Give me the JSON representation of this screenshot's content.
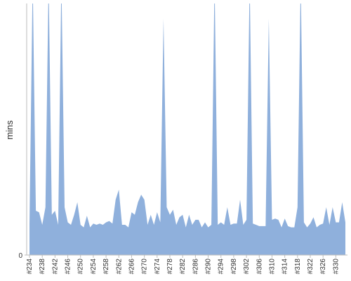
{
  "chart_data": {
    "type": "area",
    "y_label": "mins",
    "color": "#8fb0dc",
    "categories": [
      "#234",
      null,
      null,
      null,
      "#238",
      null,
      null,
      null,
      "#242",
      null,
      null,
      null,
      "#246",
      null,
      null,
      null,
      "#250",
      null,
      null,
      null,
      "#254",
      null,
      null,
      null,
      "#258",
      null,
      null,
      null,
      "#262",
      null,
      null,
      null,
      "#266",
      null,
      null,
      null,
      "#270",
      null,
      null,
      null,
      "#274",
      null,
      null,
      null,
      "#278",
      null,
      null,
      null,
      "#282",
      null,
      null,
      null,
      "#286",
      null,
      null,
      null,
      "#290",
      null,
      null,
      null,
      "#294",
      null,
      null,
      null,
      "#298",
      null,
      null,
      null,
      "#302",
      null,
      null,
      null,
      "#306",
      null,
      null,
      null,
      "#310",
      null,
      null,
      null,
      "#314",
      null,
      null,
      null,
      "#318",
      null,
      null,
      null,
      "#322",
      null,
      null,
      null,
      "#326",
      null,
      null,
      null,
      "#330",
      null,
      null,
      null
    ],
    "values": [
      12,
      110,
      17.6,
      17,
      12,
      19,
      110,
      16,
      17.6,
      12,
      110,
      19,
      13,
      12,
      16,
      21,
      12,
      11,
      15.6,
      11,
      12.5,
      12,
      12.5,
      12,
      13,
      13.5,
      12.5,
      22,
      26,
      12,
      12,
      11,
      17,
      16,
      21,
      24,
      22,
      12,
      16,
      12,
      17,
      13,
      94,
      19,
      16,
      18,
      12,
      15,
      16,
      11,
      16,
      12,
      14,
      14,
      11,
      13,
      11,
      12,
      110,
      12,
      13,
      12,
      19,
      12,
      12.5,
      12.5,
      22,
      12,
      14,
      110,
      12.5,
      12,
      11.5,
      11.5,
      11.5,
      94,
      14,
      14.5,
      14,
      11,
      14.5,
      11.5,
      11,
      11,
      19,
      110,
      13,
      11,
      12.5,
      15,
      11,
      12,
      12.5,
      19,
      12,
      19,
      13,
      13,
      21,
      13
    ],
    "ylim": [
      0,
      100
    ],
    "yticks": [
      0
    ]
  }
}
